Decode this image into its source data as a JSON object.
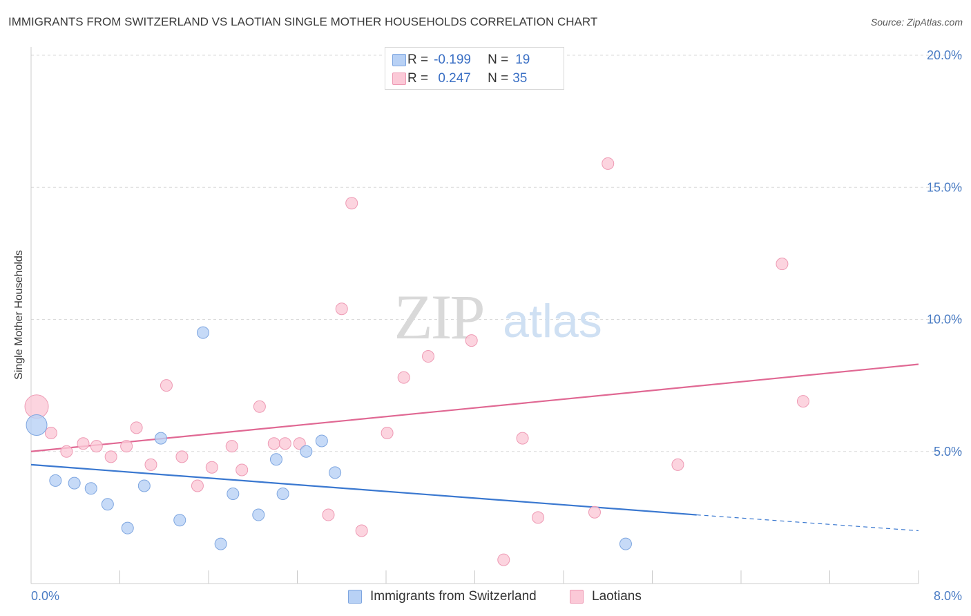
{
  "title": "IMMIGRANTS FROM SWITZERLAND VS LAOTIAN SINGLE MOTHER HOUSEHOLDS CORRELATION CHART",
  "source": "Source: ZipAtlas.com",
  "watermark": {
    "zip": "ZIP",
    "atlas": "atlas"
  },
  "colors": {
    "switzerland_fill": "#b8d1f5",
    "switzerland_stroke": "#7ea6e0",
    "switzerland_line": "#3a78d0",
    "laotian_fill": "#fbc9d7",
    "laotian_stroke": "#ee9ab4",
    "laotian_line": "#e06893",
    "tick_label": "#4a7cc4",
    "grid": "#d9d9d9"
  },
  "stats": [
    {
      "r_label": "R =",
      "r_value": "-0.199",
      "n_label": "N =",
      "n_value": "19"
    },
    {
      "r_label": "R =",
      "r_value": "0.247",
      "n_label": "N =",
      "n_value": "35"
    }
  ],
  "legend": {
    "series1": "Immigrants from Switzerland",
    "series2": "Laotians"
  },
  "chart_data": {
    "type": "scatter",
    "title": "IMMIGRANTS FROM SWITZERLAND VS LAOTIAN SINGLE MOTHER HOUSEHOLDS CORRELATION CHART",
    "xlabel": "",
    "ylabel": "Single Mother Households",
    "xlim": [
      0,
      8
    ],
    "ylim": [
      0,
      20
    ],
    "x_tick_labels": [
      "0.0%",
      "8.0%"
    ],
    "y_ticks": [
      5,
      10,
      15,
      20
    ],
    "y_tick_labels": [
      "5.0%",
      "10.0%",
      "15.0%",
      "20.0%"
    ],
    "grid": true,
    "legend_position": "bottom",
    "series": [
      {
        "name": "Immigrants from Switzerland",
        "points": [
          {
            "x": 0.05,
            "y": 6.0,
            "big": true
          },
          {
            "x": 0.22,
            "y": 3.9
          },
          {
            "x": 0.39,
            "y": 3.8
          },
          {
            "x": 0.54,
            "y": 3.6
          },
          {
            "x": 0.69,
            "y": 3.0
          },
          {
            "x": 0.87,
            "y": 2.1
          },
          {
            "x": 1.02,
            "y": 3.7
          },
          {
            "x": 1.17,
            "y": 5.5
          },
          {
            "x": 1.34,
            "y": 2.4
          },
          {
            "x": 1.55,
            "y": 9.5
          },
          {
            "x": 1.71,
            "y": 1.5
          },
          {
            "x": 1.82,
            "y": 3.4
          },
          {
            "x": 2.05,
            "y": 2.6
          },
          {
            "x": 2.21,
            "y": 4.7
          },
          {
            "x": 2.27,
            "y": 3.4
          },
          {
            "x": 2.48,
            "y": 5.0
          },
          {
            "x": 2.62,
            "y": 5.4
          },
          {
            "x": 2.74,
            "y": 4.2
          },
          {
            "x": 5.36,
            "y": 1.5
          }
        ],
        "trend": {
          "x_solid": [
            0,
            6.0
          ],
          "y_solid": [
            4.5,
            2.6
          ],
          "x_dashed": [
            6.0,
            8.0
          ],
          "y_dashed": [
            2.6,
            2.0
          ]
        }
      },
      {
        "name": "Laotians",
        "points": [
          {
            "x": 0.05,
            "y": 6.7,
            "big": true
          },
          {
            "x": 0.18,
            "y": 5.7
          },
          {
            "x": 0.32,
            "y": 5.0
          },
          {
            "x": 0.47,
            "y": 5.3
          },
          {
            "x": 0.59,
            "y": 5.2
          },
          {
            "x": 0.72,
            "y": 4.8
          },
          {
            "x": 0.86,
            "y": 5.2
          },
          {
            "x": 0.95,
            "y": 5.9
          },
          {
            "x": 1.08,
            "y": 4.5
          },
          {
            "x": 1.22,
            "y": 7.5
          },
          {
            "x": 1.36,
            "y": 4.8
          },
          {
            "x": 1.5,
            "y": 3.7
          },
          {
            "x": 1.63,
            "y": 4.4
          },
          {
            "x": 1.81,
            "y": 5.2
          },
          {
            "x": 1.9,
            "y": 4.3
          },
          {
            "x": 2.06,
            "y": 6.7
          },
          {
            "x": 2.19,
            "y": 5.3
          },
          {
            "x": 2.29,
            "y": 5.3
          },
          {
            "x": 2.42,
            "y": 5.3
          },
          {
            "x": 2.68,
            "y": 2.6
          },
          {
            "x": 2.8,
            "y": 10.4
          },
          {
            "x": 2.89,
            "y": 14.4
          },
          {
            "x": 2.98,
            "y": 2.0
          },
          {
            "x": 3.21,
            "y": 5.7
          },
          {
            "x": 3.36,
            "y": 7.8
          },
          {
            "x": 3.58,
            "y": 8.6
          },
          {
            "x": 3.97,
            "y": 9.2
          },
          {
            "x": 4.26,
            "y": 0.9
          },
          {
            "x": 4.43,
            "y": 5.5
          },
          {
            "x": 4.57,
            "y": 2.5
          },
          {
            "x": 5.08,
            "y": 2.7
          },
          {
            "x": 5.2,
            "y": 15.9
          },
          {
            "x": 5.83,
            "y": 4.5
          },
          {
            "x": 6.77,
            "y": 12.1
          },
          {
            "x": 6.96,
            "y": 6.9
          }
        ],
        "trend": {
          "x_solid": [
            0,
            8.0
          ],
          "y_solid": [
            5.0,
            8.3
          ]
        }
      }
    ]
  }
}
